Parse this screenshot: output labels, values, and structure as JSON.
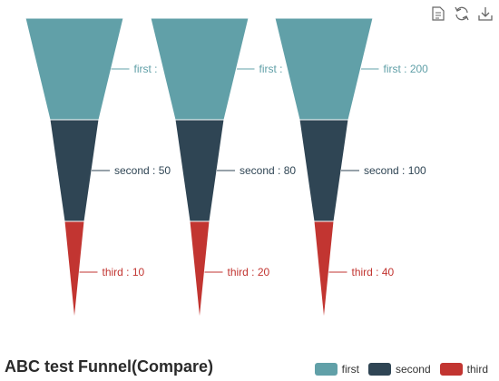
{
  "chart_data": {
    "type": "funnel",
    "title": "ABC test Funnel(Compare)",
    "categories": [
      "first",
      "second",
      "third"
    ],
    "funnels": [
      {
        "values": {
          "first": null,
          "second": 50,
          "third": 10
        },
        "labels": [
          "first :",
          "second : 50",
          "third : 10"
        ]
      },
      {
        "values": {
          "first": null,
          "second": 80,
          "third": 20
        },
        "labels": [
          "first :",
          "second : 80",
          "third : 20"
        ]
      },
      {
        "values": {
          "first": 200,
          "second": 100,
          "third": 40
        },
        "labels": [
          "first : 200",
          "second : 100",
          "third : 40"
        ]
      }
    ],
    "legend": {
      "position": "bottom-right",
      "items": [
        "first",
        "second",
        "third"
      ]
    },
    "colors": {
      "first": "#61a0a8",
      "second": "#2f4554",
      "third": "#c23531"
    }
  },
  "toolbox": {
    "icons": [
      "data-view-icon",
      "restore-icon",
      "save-image-icon"
    ]
  }
}
